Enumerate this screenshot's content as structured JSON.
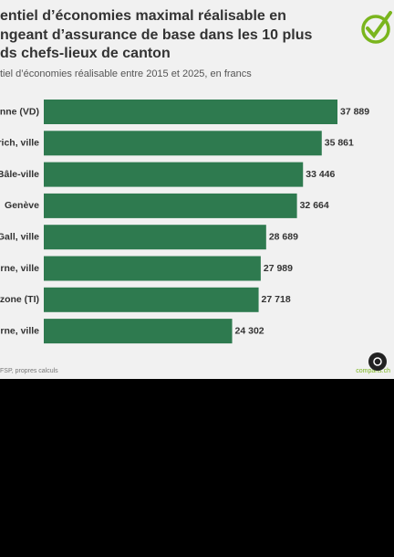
{
  "chart_data": {
    "type": "bar",
    "orientation": "horizontal",
    "title": [
      "entiel d’économies maximal réalisable en",
      "ngeant d’assurance de base dans les 10 plus",
      "ds chefs-lieux de canton"
    ],
    "subtitle": "tiel d’économies réalisable entre 2015 et 2025, en francs",
    "categories": [
      "nne (VD)",
      "rich, ville",
      "Bâle-ville",
      "Genève",
      "Gall, ville",
      "rne, ville",
      "zone (TI)",
      "rne, ville"
    ],
    "values": [
      37889,
      35861,
      33446,
      32664,
      28689,
      27989,
      27718,
      24302
    ],
    "value_labels": [
      "37 889",
      "35 861",
      "33 446",
      "32 664",
      "28 689",
      "27 989",
      "27 718",
      "24 302"
    ],
    "color": "#2e7a4f",
    "source": "FSP, propres calculs",
    "brand": "comparis.ch"
  }
}
